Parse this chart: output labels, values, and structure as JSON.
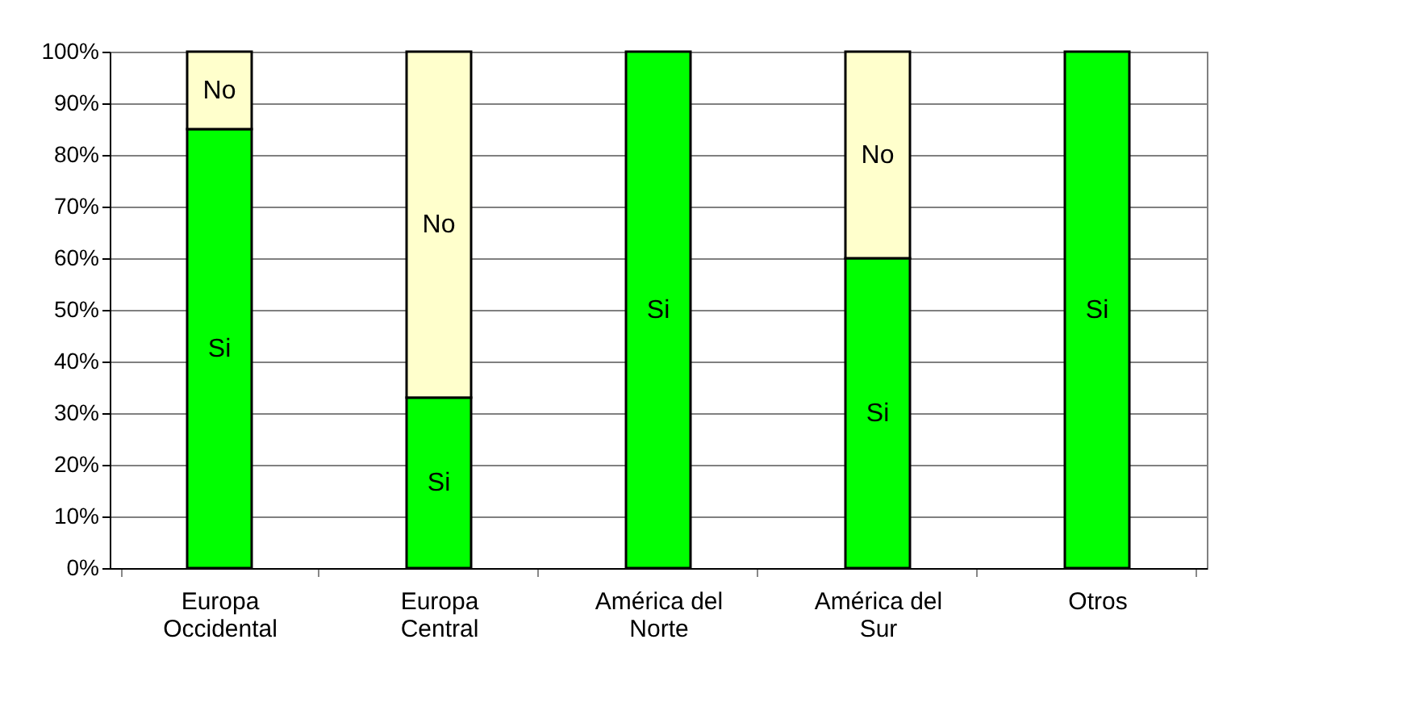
{
  "chart_data": {
    "type": "bar",
    "stacked": true,
    "categories": [
      "Europa Occidental",
      "Europa Central",
      "América del Norte",
      "América del Sur",
      "Otros"
    ],
    "series": [
      {
        "name": "Si",
        "color": "#00ff00",
        "values": [
          85,
          33,
          100,
          60,
          100
        ]
      },
      {
        "name": "No",
        "color": "#ffffcc",
        "values": [
          15,
          67,
          null,
          40,
          null
        ]
      }
    ],
    "ylim": [
      0,
      100
    ],
    "yticks": [
      {
        "value": 0,
        "label": "0%"
      },
      {
        "value": 10,
        "label": "10%"
      },
      {
        "value": 20,
        "label": "20%"
      },
      {
        "value": 30,
        "label": "30%"
      },
      {
        "value": 40,
        "label": "40%"
      },
      {
        "value": 50,
        "label": "50%"
      },
      {
        "value": 60,
        "label": "60%"
      },
      {
        "value": 70,
        "label": "70%"
      },
      {
        "value": 80,
        "label": "80%"
      },
      {
        "value": 90,
        "label": "90%"
      },
      {
        "value": 100,
        "label": "100%"
      }
    ],
    "grid": "y",
    "legend": false
  }
}
